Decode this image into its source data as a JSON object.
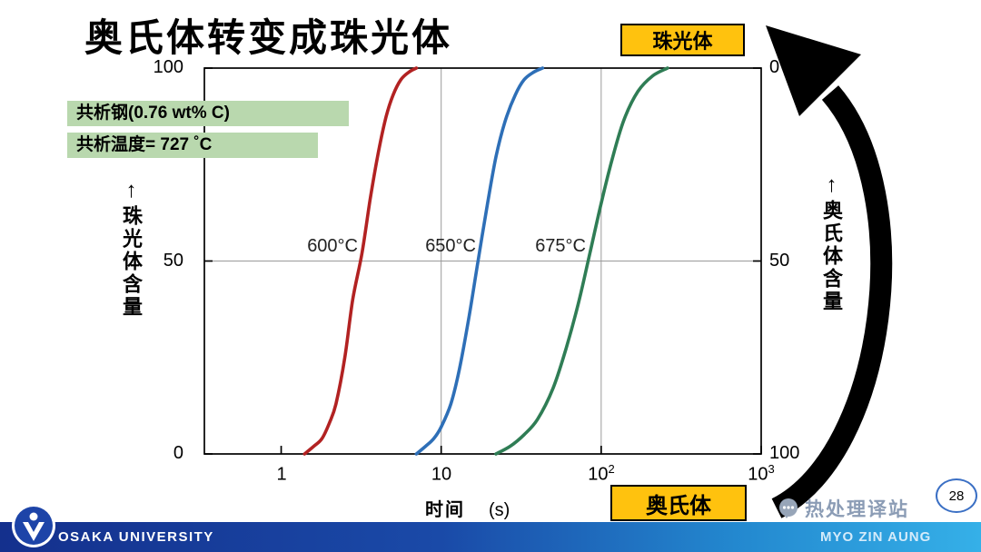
{
  "title": "奥氏体转变成珠光体",
  "badge_top": "珠光体",
  "badge_bottom": "奥氏体",
  "callouts": {
    "line1": "共析钢(0.76 wt% C)",
    "line2": "共析温度= 727 ˚C"
  },
  "colors": {
    "badge_yellow": "#ffc20e",
    "highlight_green": "#b9d8ae",
    "footer_blue_left": "#14308d",
    "footer_blue_right": "#35b0e8",
    "watermark_gray": "#8b9cb5"
  },
  "chart_data": {
    "type": "line",
    "x_axis": {
      "label": "时间",
      "unit": "(s)",
      "scale": "log10",
      "range": [
        0.33,
        1000
      ],
      "tick_values": [
        1,
        10,
        100,
        1000
      ],
      "tick_labels": [
        {
          "base": "1",
          "sup": ""
        },
        {
          "base": "10",
          "sup": ""
        },
        {
          "base": "10",
          "sup": "2"
        },
        {
          "base": "10",
          "sup": "3"
        }
      ]
    },
    "y_axis_left": {
      "title": "珠光体含量",
      "arrow": "↑",
      "labels_top_to_bottom": [
        "100",
        "50",
        "0"
      ]
    },
    "y_axis_right": {
      "title": "奥氏体含量",
      "arrow": "↑",
      "labels_top_to_bottom": [
        "0",
        "50",
        "100"
      ]
    },
    "ylim": [
      0,
      100
    ],
    "y_tick_values": [
      0,
      50,
      100
    ],
    "grid": {
      "x_values": [
        10,
        100
      ],
      "y_values": [
        50
      ]
    },
    "series": [
      {
        "name": "600°C",
        "color": "#b22222",
        "points_time_s_vs_pearlite_pct": [
          [
            1.4,
            0
          ],
          [
            1.6,
            2
          ],
          [
            1.8,
            4
          ],
          [
            2.0,
            8
          ],
          [
            2.2,
            13
          ],
          [
            2.5,
            25
          ],
          [
            2.8,
            40
          ],
          [
            3.2,
            52
          ],
          [
            3.6,
            66
          ],
          [
            4.0,
            77
          ],
          [
            4.5,
            87
          ],
          [
            5.0,
            93
          ],
          [
            5.6,
            97
          ],
          [
            6.3,
            99
          ],
          [
            7.0,
            100
          ]
        ]
      },
      {
        "name": "650°C",
        "color": "#2e6fb7",
        "points_time_s_vs_pearlite_pct": [
          [
            7,
            0
          ],
          [
            8,
            2
          ],
          [
            9,
            4
          ],
          [
            10,
            7
          ],
          [
            11.5,
            13
          ],
          [
            13,
            22
          ],
          [
            15,
            36
          ],
          [
            17,
            50
          ],
          [
            19.5,
            65
          ],
          [
            22,
            77
          ],
          [
            25,
            86
          ],
          [
            29,
            93
          ],
          [
            33,
            97
          ],
          [
            38,
            99
          ],
          [
            43,
            100
          ]
        ]
      },
      {
        "name": "675°C",
        "color": "#2f7d55",
        "points_time_s_vs_pearlite_pct": [
          [
            22,
            0
          ],
          [
            27,
            2
          ],
          [
            33,
            5
          ],
          [
            40,
            9
          ],
          [
            50,
            17
          ],
          [
            60,
            27
          ],
          [
            72,
            39
          ],
          [
            85,
            52
          ],
          [
            100,
            65
          ],
          [
            120,
            78
          ],
          [
            140,
            87
          ],
          [
            170,
            94
          ],
          [
            210,
            98
          ],
          [
            260,
            100
          ]
        ]
      }
    ]
  },
  "watermark": "热处理译站",
  "page_number": "28",
  "footer": {
    "university": "OSAKA UNIVERSITY",
    "author": "MYO ZIN AUNG"
  }
}
